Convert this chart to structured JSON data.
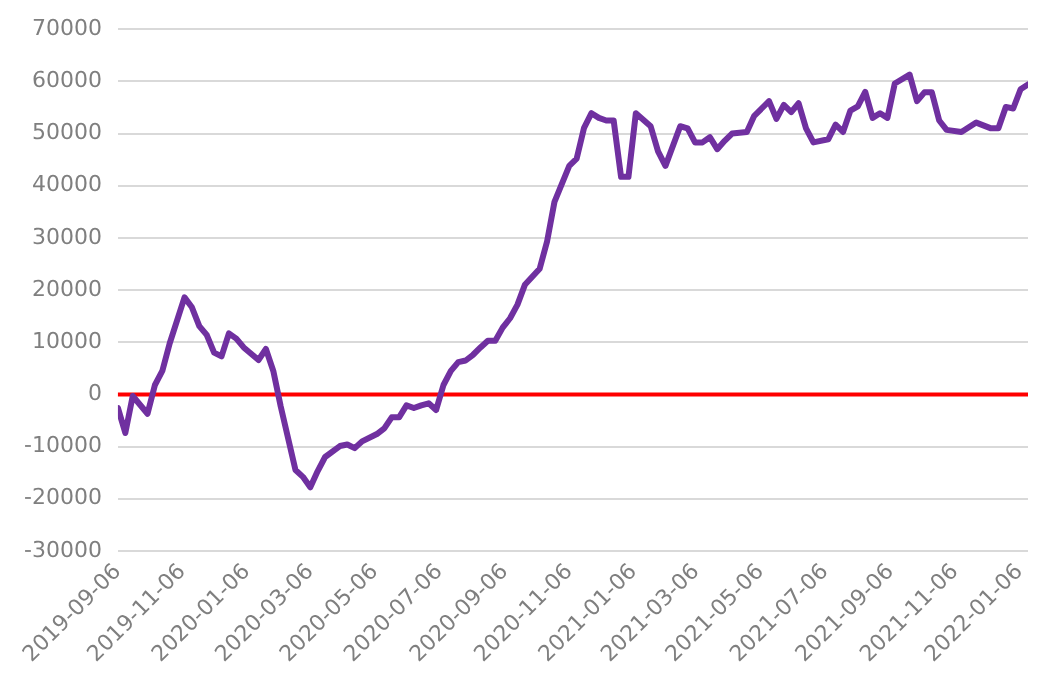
{
  "chart_data": {
    "type": "line",
    "x": [
      "2019-09-06",
      "2019-09-13",
      "2019-09-20",
      "2019-10-04",
      "2019-10-11",
      "2019-10-18",
      "2019-10-25",
      "2019-11-08",
      "2019-11-15",
      "2019-11-22",
      "2019-11-29",
      "2019-12-06",
      "2019-12-13",
      "2019-12-20",
      "2019-12-27",
      "2020-01-03",
      "2020-01-17",
      "2020-01-24",
      "2020-01-31",
      "2020-02-07",
      "2020-02-21",
      "2020-02-28",
      "2020-03-06",
      "2020-03-13",
      "2020-03-20",
      "2020-04-03",
      "2020-04-10",
      "2020-04-17",
      "2020-04-24",
      "2020-05-08",
      "2020-05-15",
      "2020-05-22",
      "2020-05-29",
      "2020-06-05",
      "2020-06-12",
      "2020-06-19",
      "2020-06-26",
      "2020-07-03",
      "2020-07-10",
      "2020-07-17",
      "2020-07-24",
      "2020-07-31",
      "2020-08-07",
      "2020-08-14",
      "2020-08-21",
      "2020-08-28",
      "2020-09-04",
      "2020-09-11",
      "2020-09-18",
      "2020-09-25",
      "2020-10-09",
      "2020-10-16",
      "2020-10-23",
      "2020-11-06",
      "2020-11-13",
      "2020-11-20",
      "2020-11-27",
      "2020-12-04",
      "2020-12-11",
      "2020-12-18",
      "2020-12-25",
      "2021-01-01",
      "2021-01-08",
      "2021-01-22",
      "2021-01-29",
      "2021-02-05",
      "2021-02-19",
      "2021-02-26",
      "2021-03-05",
      "2021-03-12",
      "2021-03-19",
      "2021-03-26",
      "2021-04-02",
      "2021-04-09",
      "2021-04-23",
      "2021-04-30",
      "2021-05-14",
      "2021-05-21",
      "2021-05-28",
      "2021-06-04",
      "2021-06-11",
      "2021-06-18",
      "2021-06-25",
      "2021-07-09",
      "2021-07-16",
      "2021-07-23",
      "2021-07-30",
      "2021-08-06",
      "2021-08-13",
      "2021-08-20",
      "2021-08-27",
      "2021-09-03",
      "2021-09-10",
      "2021-09-24",
      "2021-10-01",
      "2021-10-08",
      "2021-10-15",
      "2021-10-22",
      "2021-10-29",
      "2021-11-12",
      "2021-11-26",
      "2021-12-10",
      "2021-12-17",
      "2021-12-24",
      "2021-12-31",
      "2022-01-07",
      "2022-01-14"
    ],
    "series": [
      {
        "color": "#7030a0",
        "values": [
          -2600,
          -7400,
          -300,
          -3700,
          1800,
          4500,
          9800,
          18600,
          16700,
          13100,
          11400,
          8000,
          7300,
          11700,
          10700,
          9000,
          6600,
          8700,
          4500,
          -2300,
          -14500,
          -15800,
          -17800,
          -14700,
          -12000,
          -9900,
          -9600,
          -10300,
          -9000,
          -7600,
          -6500,
          -4400,
          -4400,
          -2100,
          -2600,
          -2100,
          -1700,
          -3000,
          1800,
          4500,
          6200,
          6500,
          7600,
          9000,
          10300,
          10300,
          12800,
          14600,
          17200,
          21000,
          24100,
          29300,
          36900,
          43800,
          45200,
          51100,
          53900,
          53000,
          52500,
          52500,
          41700,
          41700,
          53900,
          51400,
          46600,
          43800,
          51400,
          51000,
          48300,
          48300,
          49300,
          47000,
          48600,
          50000,
          50300,
          53400,
          56200,
          52800,
          55500,
          54100,
          55800,
          51000,
          48300,
          48900,
          51700,
          50300,
          54400,
          55200,
          58000,
          53000,
          53900,
          53000,
          59600,
          61300,
          56200,
          57900,
          57900,
          52500,
          50700,
          50300,
          52100,
          51000,
          51000,
          55100,
          54800,
          58500,
          59400
        ]
      }
    ],
    "xlim": [
      "2019-09-06",
      "2022-01-14"
    ],
    "xticks": [
      "2019-09-06",
      "2019-11-06",
      "2020-01-06",
      "2020-03-06",
      "2020-05-06",
      "2020-07-06",
      "2020-09-06",
      "2020-11-06",
      "2021-01-06",
      "2021-03-06",
      "2021-05-06",
      "2021-07-06",
      "2021-09-06",
      "2021-11-06",
      "2022-01-06"
    ],
    "ylim": [
      -30000,
      70000
    ],
    "yticks": [
      -30000,
      -20000,
      -10000,
      0,
      10000,
      20000,
      30000,
      40000,
      50000,
      60000,
      70000
    ],
    "grid": "y",
    "legend": false,
    "marker": "none",
    "line_style": "solid",
    "ref_lines": [
      {
        "axis": "y",
        "value": 0,
        "color": "#ff0000"
      }
    ]
  }
}
